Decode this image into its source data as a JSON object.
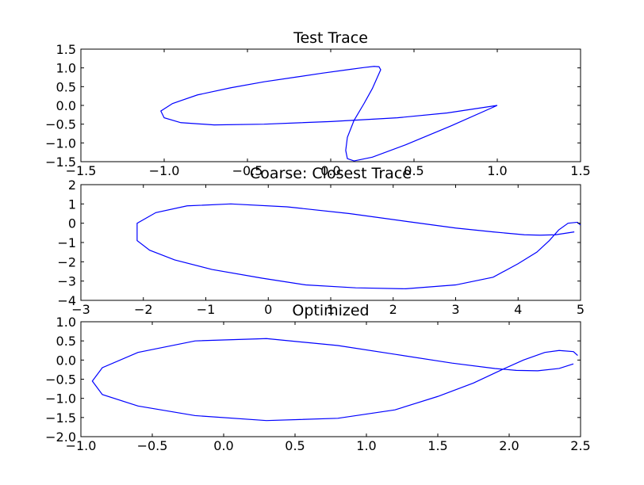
{
  "chart_data": [
    {
      "type": "line",
      "title": "Test Trace",
      "xlim": [
        -1.5,
        1.5
      ],
      "ylim": [
        -1.5,
        1.5
      ],
      "xticks": [
        -1.5,
        -1.0,
        -0.5,
        0.0,
        0.5,
        1.0,
        1.5
      ],
      "yticks": [
        -1.5,
        -1.0,
        -0.5,
        0.0,
        0.5,
        1.0,
        1.5
      ],
      "xtick_labels": [
        "−1.5",
        "−1.0",
        "−0.5",
        "0.0",
        "0.5",
        "1.0",
        "1.5"
      ],
      "ytick_labels": [
        "−1.5",
        "−1.0",
        "−0.5",
        "0.0",
        "0.5",
        "1.0",
        "1.5"
      ],
      "color": "#0000ff",
      "series": [
        {
          "x": [
            1.0,
            0.72,
            0.45,
            0.25,
            0.14,
            0.1,
            0.09,
            0.1,
            0.14,
            0.2,
            0.25,
            0.28,
            0.3,
            0.29,
            0.26,
            0.2,
            0.1,
            -0.05,
            -0.2,
            -0.4,
            -0.6,
            -0.8,
            -0.95,
            -1.02,
            -1.0,
            -0.9,
            -0.7,
            -0.4,
            0.0,
            0.4,
            0.7,
            1.0
          ],
          "y": [
            0.0,
            -0.55,
            -1.05,
            -1.38,
            -1.48,
            -1.42,
            -1.2,
            -0.85,
            -0.4,
            0.05,
            0.45,
            0.75,
            0.95,
            1.03,
            1.04,
            1.01,
            0.95,
            0.86,
            0.76,
            0.63,
            0.47,
            0.28,
            0.05,
            -0.15,
            -0.33,
            -0.46,
            -0.52,
            -0.5,
            -0.43,
            -0.33,
            -0.2,
            0.0
          ]
        }
      ]
    },
    {
      "type": "line",
      "title": "Coarse: Closest Trace",
      "xlim": [
        -3,
        5
      ],
      "ylim": [
        -4,
        2
      ],
      "xticks": [
        -3,
        -2,
        -1,
        0,
        1,
        2,
        3,
        4,
        5
      ],
      "yticks": [
        -4,
        -3,
        -2,
        -1,
        0,
        1,
        2
      ],
      "xtick_labels": [
        "−3",
        "−2",
        "−1",
        "0",
        "1",
        "2",
        "3",
        "4",
        "5"
      ],
      "ytick_labels": [
        "−4",
        "−3",
        "−2",
        "−1",
        "0",
        "1",
        "2"
      ],
      "color": "#0000ff",
      "series": [
        {
          "x": [
            4.9,
            4.6,
            4.35,
            4.1,
            3.6,
            3.0,
            2.2,
            1.3,
            0.3,
            -0.6,
            -1.3,
            -1.8,
            -2.1,
            -2.1,
            -1.9,
            -1.5,
            -0.9,
            -0.1,
            0.6,
            1.4,
            2.2,
            3.0,
            3.6,
            4.0,
            4.3,
            4.5,
            4.65,
            4.8,
            4.95,
            5.0
          ],
          "y": [
            -0.45,
            -0.6,
            -0.62,
            -0.6,
            -0.45,
            -0.25,
            0.1,
            0.5,
            0.85,
            1.0,
            0.9,
            0.55,
            0.0,
            -0.9,
            -1.4,
            -1.9,
            -2.4,
            -2.85,
            -3.2,
            -3.35,
            -3.4,
            -3.2,
            -2.8,
            -2.1,
            -1.5,
            -0.9,
            -0.35,
            0.0,
            0.05,
            -0.1
          ]
        }
      ]
    },
    {
      "type": "line",
      "title": "Optimized",
      "xlim": [
        -1.0,
        2.5
      ],
      "ylim": [
        -2.0,
        1.0
      ],
      "xticks": [
        -1.0,
        -0.5,
        0.0,
        0.5,
        1.0,
        1.5,
        2.0,
        2.5
      ],
      "yticks": [
        -2.0,
        -1.5,
        -1.0,
        -0.5,
        0.0,
        0.5,
        1.0
      ],
      "xtick_labels": [
        "−1.0",
        "−0.5",
        "0.0",
        "0.5",
        "1.0",
        "1.5",
        "2.0",
        "2.5"
      ],
      "ytick_labels": [
        "−2.0",
        "−1.5",
        "−1.0",
        "−0.5",
        "0.0",
        "0.5",
        "1.0"
      ],
      "color": "#0000ff",
      "series": [
        {
          "x": [
            2.45,
            2.35,
            2.2,
            2.05,
            1.9,
            1.6,
            1.2,
            0.8,
            0.3,
            -0.2,
            -0.6,
            -0.85,
            -0.92,
            -0.85,
            -0.6,
            -0.2,
            0.3,
            0.8,
            1.2,
            1.5,
            1.75,
            1.95,
            2.1,
            2.25,
            2.35,
            2.45,
            2.48
          ],
          "y": [
            -0.1,
            -0.22,
            -0.28,
            -0.27,
            -0.22,
            -0.08,
            0.15,
            0.38,
            0.56,
            0.5,
            0.2,
            -0.2,
            -0.55,
            -0.9,
            -1.2,
            -1.45,
            -1.58,
            -1.52,
            -1.3,
            -0.95,
            -0.6,
            -0.25,
            0.0,
            0.2,
            0.25,
            0.22,
            0.12
          ]
        }
      ]
    }
  ]
}
